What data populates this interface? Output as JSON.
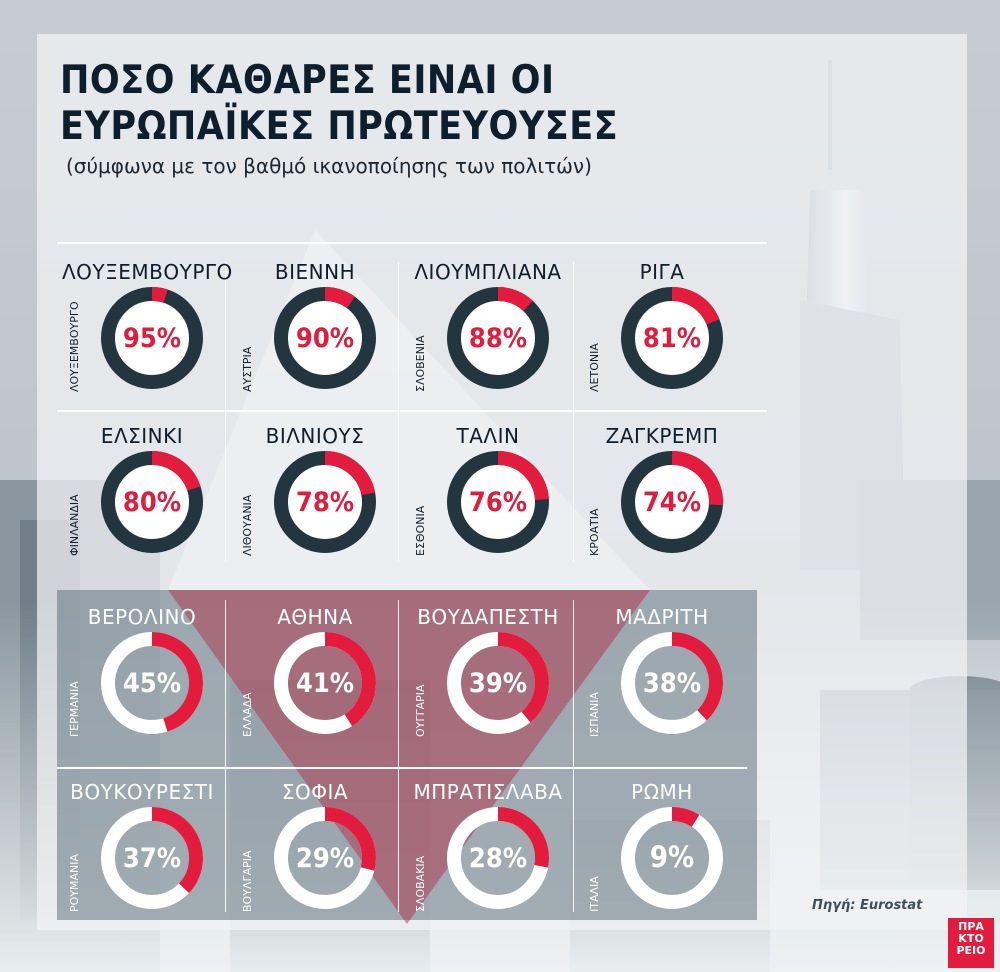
{
  "title_line1": "ΠΟΣΟ ΚΑΘΑΡΕΣ ΕΙΝΑΙ ΟΙ",
  "title_line2": "ΕΥΡΩΠΑΪΚΕΣ ΠΡΩΤΕΥΟΥΣΕΣ",
  "subtitle": "(σύμφωνα με τον βαθμό ικανοποίησης των πολιτών)",
  "source": "Πηγή: Eurostat",
  "logo": [
    "ΠΡΑ",
    "ΚΤΟ",
    "ΡΕΙΟ"
  ],
  "colors": {
    "accent": "#e31b3c",
    "dark": "#23353f",
    "light": "#ffffff",
    "text_dark": "#0d1e2d"
  },
  "chart_data": {
    "type": "donut",
    "unit": "%",
    "items": [
      {
        "city": "ΛΟΥΞΕΜΒΟΥΡΓΟ",
        "country": "ΛΟΥΞΕΜΒΟΥΡΓΟ",
        "value": 95,
        "label": "95%"
      },
      {
        "city": "ΒΙΕΝΝΗ",
        "country": "ΑΥΣΤΡΙΑ",
        "value": 90,
        "label": "90%"
      },
      {
        "city": "ΛΙΟΥΜΠΛΙΑΝΑ",
        "country": "ΣΛΟΒΕΝΙΑ",
        "value": 88,
        "label": "88%"
      },
      {
        "city": "ΡΙΓΑ",
        "country": "ΛΕΤΟΝΙΑ",
        "value": 81,
        "label": "81%"
      },
      {
        "city": "ΕΛΣΙΝΚΙ",
        "country": "ΦΙΝΛΑΝΔΙΑ",
        "value": 80,
        "label": "80%"
      },
      {
        "city": "ΒΙΛΝΙΟΥΣ",
        "country": "ΛΙΘΟΥΑΝΙΑ",
        "value": 78,
        "label": "78%"
      },
      {
        "city": "ΤΑΛΙΝ",
        "country": "ΕΣΘΟΝΙΑ",
        "value": 76,
        "label": "76%"
      },
      {
        "city": "ΖΑΓΚΡΕΜΠ",
        "country": "ΚΡΟΑΤΙΑ",
        "value": 74,
        "label": "74%"
      },
      {
        "city": "ΒΕΡΟΛΙΝΟ",
        "country": "ΓΕΡΜΑΝΙΑ",
        "value": 45,
        "label": "45%"
      },
      {
        "city": "ΑΘΗΝΑ",
        "country": "ΕΛΛΑΔΑ",
        "value": 41,
        "label": "41%"
      },
      {
        "city": "ΒΟΥΔΑΠΕΣΤΗ",
        "country": "ΟΥΓΓΑΡΙΑ",
        "value": 39,
        "label": "39%"
      },
      {
        "city": "ΜΑΔΡΙΤΗ",
        "country": "ΙΣΠΑΝΙΑ",
        "value": 38,
        "label": "38%"
      },
      {
        "city": "ΒΟΥΚΟΥΡΕΣΤΙ",
        "country": "ΡΟΥΜΑΝΙΑ",
        "value": 37,
        "label": "37%"
      },
      {
        "city": "ΣΟΦΙΑ",
        "country": "ΒΟΥΛΓΑΡΙΑ",
        "value": 29,
        "label": "29%"
      },
      {
        "city": "ΜΠΡΑΤΙΣΛΑΒΑ",
        "country": "ΣΛΟΒΑΚΙΑ",
        "value": 28,
        "label": "28%"
      },
      {
        "city": "ΡΩΜΗ",
        "country": "ΙΤΑΛΙΑ",
        "value": 9,
        "label": "9%"
      }
    ]
  }
}
